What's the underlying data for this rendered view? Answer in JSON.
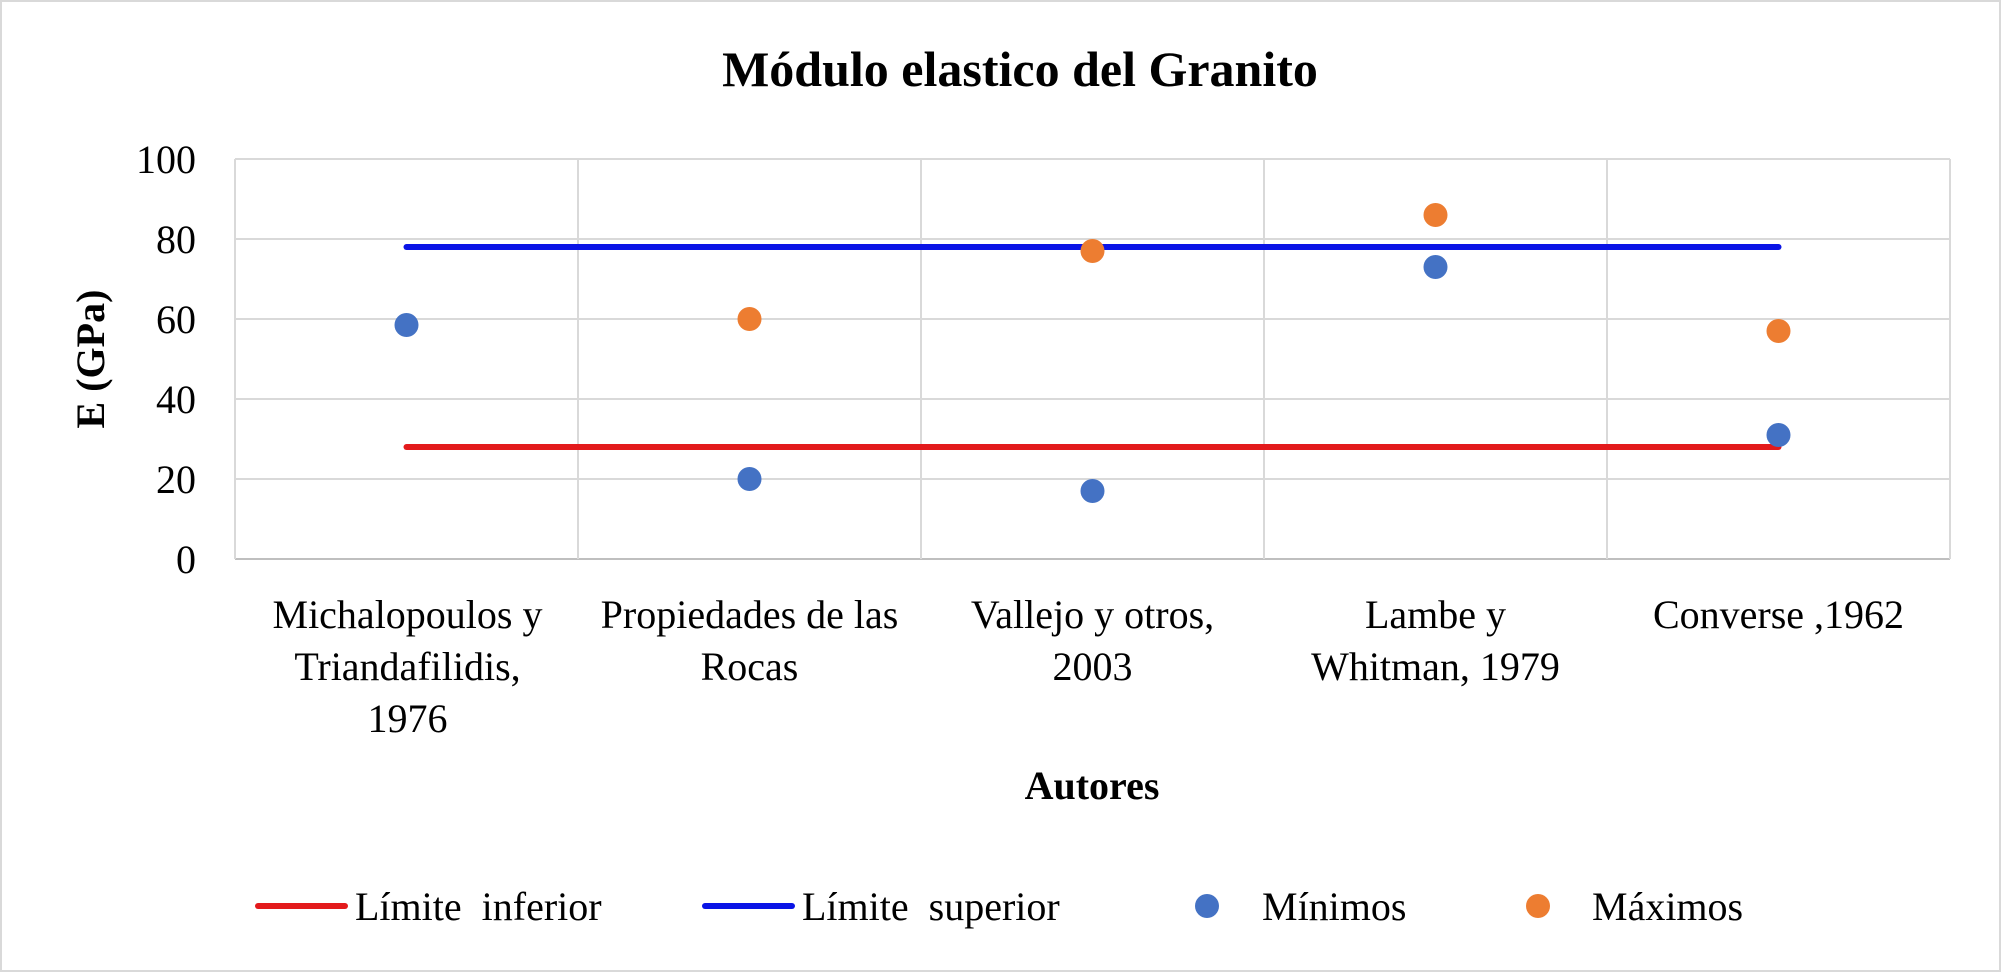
{
  "chart_data": {
    "type": "scatter",
    "title": "Módulo elastico del Granito",
    "xlabel": "Autores",
    "ylabel": "E (GPa)",
    "ylim": [
      0,
      100
    ],
    "yticks": [
      0,
      20,
      40,
      60,
      80,
      100
    ],
    "grid": true,
    "legend_position": "bottom",
    "categories": [
      "Michalopoulos y Triandafilidis, 1976",
      "Propiedades de las Rocas",
      "Vallejo y otros, 2003",
      "Lambe y Whitman, 1979",
      "Converse ,1962"
    ],
    "category_lines": [
      [
        "Michalopoulos y",
        "Triandafilidis,",
        "1976"
      ],
      [
        "Propiedades de las",
        "Rocas"
      ],
      [
        "Vallejo y otros,",
        "2003"
      ],
      [
        "Lambe y",
        "Whitman, 1979"
      ],
      [
        "Converse ,1962"
      ]
    ],
    "series": [
      {
        "name": "Límite  inferior",
        "kind": "line",
        "color": "#e31a1c",
        "values": [
          28,
          28,
          28,
          28,
          28
        ]
      },
      {
        "name": "Límite  superior",
        "kind": "line",
        "color": "#0a14e6",
        "values": [
          78,
          78,
          78,
          78,
          78
        ]
      },
      {
        "name": "Mínimos",
        "kind": "marker",
        "color": "#4472c4",
        "values": [
          58.5,
          20,
          17,
          73,
          31
        ]
      },
      {
        "name": "Máximos",
        "kind": "marker",
        "color": "#ed7d31",
        "values": [
          null,
          60,
          77,
          86,
          57
        ]
      }
    ]
  }
}
